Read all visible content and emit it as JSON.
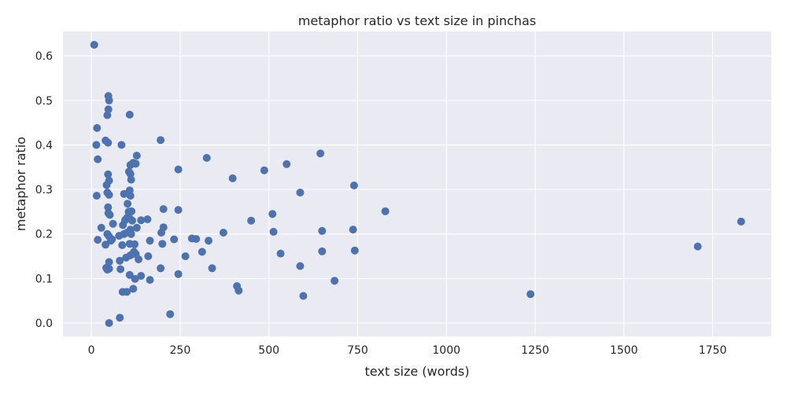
{
  "chart_data": {
    "type": "scatter",
    "title": "metaphor ratio vs text size in pinchas",
    "xlabel": "text size (words)",
    "ylabel": "metaphor ratio",
    "xlim": [
      -80,
      1915
    ],
    "ylim": [
      -0.03,
      0.655
    ],
    "xticks": [
      0,
      250,
      500,
      750,
      1000,
      1250,
      1500,
      1750
    ],
    "yticks": [
      0.0,
      0.1,
      0.2,
      0.3,
      0.4,
      0.5,
      0.6
    ],
    "xtick_labels": [
      "0",
      "250",
      "500",
      "750",
      "1000",
      "1250",
      "1500",
      "1750"
    ],
    "ytick_labels": [
      "0.0",
      "0.1",
      "0.2",
      "0.3",
      "0.4",
      "0.5",
      "0.6"
    ],
    "grid": true,
    "plot_background": "#eaeaf2",
    "marker_color": "#4c72b0",
    "points": [
      [
        8,
        0.625
      ],
      [
        48,
        0.51
      ],
      [
        50,
        0.5
      ],
      [
        48,
        0.48
      ],
      [
        45,
        0.467
      ],
      [
        108,
        0.468
      ],
      [
        16,
        0.438
      ],
      [
        195,
        0.411
      ],
      [
        14,
        0.4
      ],
      [
        40,
        0.41
      ],
      [
        47,
        0.405
      ],
      [
        85,
        0.4
      ],
      [
        18,
        0.368
      ],
      [
        325,
        0.371
      ],
      [
        645,
        0.381
      ],
      [
        128,
        0.376
      ],
      [
        110,
        0.355
      ],
      [
        118,
        0.36
      ],
      [
        125,
        0.358
      ],
      [
        245,
        0.345
      ],
      [
        487,
        0.343
      ],
      [
        550,
        0.357
      ],
      [
        47,
        0.334
      ],
      [
        106,
        0.34
      ],
      [
        110,
        0.335
      ],
      [
        112,
        0.322
      ],
      [
        398,
        0.325
      ],
      [
        50,
        0.32
      ],
      [
        43,
        0.31
      ],
      [
        740,
        0.309
      ],
      [
        15,
        0.286
      ],
      [
        45,
        0.293
      ],
      [
        50,
        0.288
      ],
      [
        92,
        0.29
      ],
      [
        108,
        0.298
      ],
      [
        110,
        0.286
      ],
      [
        588,
        0.293
      ],
      [
        102,
        0.268
      ],
      [
        47,
        0.26
      ],
      [
        48,
        0.247
      ],
      [
        52,
        0.243
      ],
      [
        105,
        0.25
      ],
      [
        113,
        0.251
      ],
      [
        203,
        0.256
      ],
      [
        245,
        0.254
      ],
      [
        510,
        0.245
      ],
      [
        828,
        0.251
      ],
      [
        100,
        0.236
      ],
      [
        95,
        0.231
      ],
      [
        108,
        0.235
      ],
      [
        115,
        0.23
      ],
      [
        140,
        0.231
      ],
      [
        158,
        0.233
      ],
      [
        450,
        0.23
      ],
      [
        1830,
        0.228
      ],
      [
        28,
        0.214
      ],
      [
        61,
        0.223
      ],
      [
        89,
        0.22
      ],
      [
        128,
        0.214
      ],
      [
        203,
        0.215
      ],
      [
        372,
        0.203
      ],
      [
        513,
        0.205
      ],
      [
        650,
        0.207
      ],
      [
        737,
        0.21
      ],
      [
        18,
        0.187
      ],
      [
        45,
        0.2
      ],
      [
        50,
        0.195
      ],
      [
        55,
        0.185
      ],
      [
        58,
        0.188
      ],
      [
        78,
        0.196
      ],
      [
        92,
        0.2
      ],
      [
        100,
        0.203
      ],
      [
        110,
        0.21
      ],
      [
        112,
        0.2
      ],
      [
        165,
        0.185
      ],
      [
        197,
        0.203
      ],
      [
        233,
        0.188
      ],
      [
        283,
        0.19
      ],
      [
        295,
        0.189
      ],
      [
        330,
        0.185
      ],
      [
        40,
        0.176
      ],
      [
        87,
        0.175
      ],
      [
        108,
        0.178
      ],
      [
        122,
        0.177
      ],
      [
        200,
        0.178
      ],
      [
        1708,
        0.172
      ],
      [
        120,
        0.16
      ],
      [
        160,
        0.15
      ],
      [
        265,
        0.15
      ],
      [
        312,
        0.16
      ],
      [
        533,
        0.156
      ],
      [
        650,
        0.161
      ],
      [
        742,
        0.163
      ],
      [
        80,
        0.14
      ],
      [
        98,
        0.147
      ],
      [
        110,
        0.152
      ],
      [
        125,
        0.155
      ],
      [
        133,
        0.143
      ],
      [
        50,
        0.137
      ],
      [
        42,
        0.124
      ],
      [
        45,
        0.12
      ],
      [
        50,
        0.122
      ],
      [
        82,
        0.121
      ],
      [
        195,
        0.123
      ],
      [
        340,
        0.123
      ],
      [
        588,
        0.128
      ],
      [
        108,
        0.108
      ],
      [
        140,
        0.106
      ],
      [
        123,
        0.099
      ],
      [
        165,
        0.097
      ],
      [
        245,
        0.11
      ],
      [
        685,
        0.095
      ],
      [
        410,
        0.083
      ],
      [
        415,
        0.073
      ],
      [
        88,
        0.07
      ],
      [
        100,
        0.07
      ],
      [
        118,
        0.077
      ],
      [
        597,
        0.061
      ],
      [
        1237,
        0.065
      ],
      [
        222,
        0.02
      ],
      [
        80,
        0.012
      ],
      [
        50,
        0.0
      ]
    ]
  }
}
